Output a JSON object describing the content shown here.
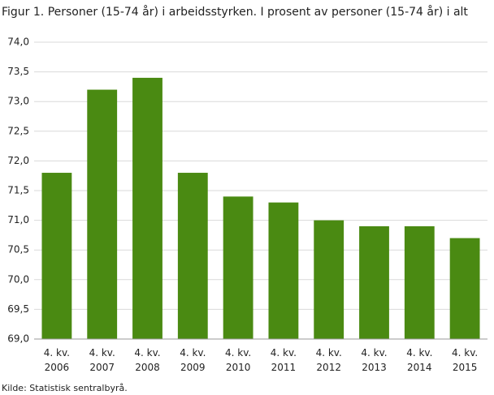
{
  "chart_data": {
    "type": "bar",
    "title": "Figur 1. Personer (15-74 år) i arbeidsstyrken. I prosent av personer (15-74 år) i alt",
    "categories": [
      [
        "4. kv.",
        "2006"
      ],
      [
        "4. kv.",
        "2007"
      ],
      [
        "4. kv.",
        "2008"
      ],
      [
        "4. kv.",
        "2009"
      ],
      [
        "4. kv.",
        "2010"
      ],
      [
        "4. kv.",
        "2011"
      ],
      [
        "4. kv.",
        "2012"
      ],
      [
        "4. kv.",
        "2013"
      ],
      [
        "4. kv.",
        "2014"
      ],
      [
        "4. kv.",
        "2015"
      ]
    ],
    "values": [
      71.8,
      73.2,
      73.4,
      71.8,
      71.4,
      71.3,
      71.0,
      70.9,
      70.9,
      70.7
    ],
    "color": "#4a8a12",
    "ylim": [
      69,
      74
    ],
    "yticks": [
      {
        "value": 69,
        "label": "69,0"
      },
      {
        "value": 69.5,
        "label": "69,5"
      },
      {
        "value": 70,
        "label": "70,0"
      },
      {
        "value": 70.5,
        "label": "70,5"
      },
      {
        "value": 71,
        "label": "71,0"
      },
      {
        "value": 71.5,
        "label": "71,5"
      },
      {
        "value": 72,
        "label": "72,0"
      },
      {
        "value": 72.5,
        "label": "72,5"
      },
      {
        "value": 73,
        "label": "73,0"
      },
      {
        "value": 73.5,
        "label": "73,5"
      },
      {
        "value": 74,
        "label": "74,0"
      }
    ],
    "grid": true,
    "source": "Kilde: Statistisk sentralbyrå."
  }
}
